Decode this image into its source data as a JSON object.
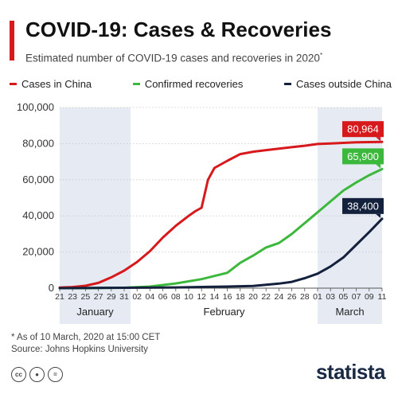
{
  "header": {
    "title": "COVID-19: Cases & Recoveries",
    "subtitle": "Estimated number of COVID-19 cases and recoveries in 2020",
    "subtitle_mark": "*"
  },
  "footer": {
    "note": "* As of 10 March, 2020 at 15:00 CET",
    "source": "Source: Johns Hopkins University",
    "license_icons": [
      "creative-commons-icon",
      "attribution-icon",
      "no-derivatives-icon"
    ],
    "brand": "statista"
  },
  "colors": {
    "accent": "#d7191c",
    "cases_china": "#d7191c",
    "recoveries": "#3cb93c",
    "cases_outside": "#14213d",
    "shade": "#e6ebf3",
    "brand": "#1b2a44"
  },
  "chart_data": {
    "type": "line",
    "x_tick_labels": [
      "21",
      "23",
      "25",
      "27",
      "29",
      "31",
      "02",
      "04",
      "06",
      "08",
      "10",
      "12",
      "14",
      "16",
      "18",
      "20",
      "22",
      "24",
      "26",
      "28",
      "01",
      "03",
      "05",
      "07",
      "09",
      "11"
    ],
    "month_labels": [
      "January",
      "February",
      "March"
    ],
    "x_start": "2020-01-21",
    "x_end": "2020-03-11",
    "ylim": [
      0,
      100000
    ],
    "y_ticks": [
      "0",
      "20,000",
      "40,000",
      "60,000",
      "80,000",
      "100,000"
    ],
    "grid": true,
    "legend_position": "top",
    "series": [
      {
        "name": "Cases in China",
        "color": "#d7191c",
        "end_label": "80,964",
        "x": [
          "2020-01-21",
          "2020-01-23",
          "2020-01-25",
          "2020-01-27",
          "2020-01-29",
          "2020-01-31",
          "2020-02-02",
          "2020-02-04",
          "2020-02-06",
          "2020-02-08",
          "2020-02-10",
          "2020-02-11",
          "2020-02-12",
          "2020-02-13",
          "2020-02-14",
          "2020-02-16",
          "2020-02-18",
          "2020-02-20",
          "2020-02-22",
          "2020-02-24",
          "2020-02-26",
          "2020-02-28",
          "2020-03-01",
          "2020-03-03",
          "2020-03-05",
          "2020-03-07",
          "2020-03-09",
          "2020-03-11"
        ],
        "y": [
          300,
          600,
          1300,
          2900,
          6000,
          9700,
          14500,
          20500,
          28000,
          34500,
          40000,
          42500,
          44500,
          60000,
          66500,
          70500,
          74200,
          75500,
          76400,
          77200,
          78000,
          78800,
          79800,
          80100,
          80400,
          80700,
          80850,
          80964
        ]
      },
      {
        "name": "Confirmed recoveries",
        "color": "#3cb93c",
        "end_label": "65,900",
        "x": [
          "2020-01-21",
          "2020-01-25",
          "2020-01-31",
          "2020-02-04",
          "2020-02-08",
          "2020-02-12",
          "2020-02-16",
          "2020-02-18",
          "2020-02-20",
          "2020-02-22",
          "2020-02-24",
          "2020-02-26",
          "2020-02-28",
          "2020-03-01",
          "2020-03-03",
          "2020-03-05",
          "2020-03-07",
          "2020-03-09",
          "2020-03-11"
        ],
        "y": [
          0,
          0,
          200,
          900,
          2600,
          5000,
          8500,
          14000,
          18000,
          22500,
          25000,
          30000,
          36000,
          42000,
          48000,
          54000,
          58500,
          62500,
          65900
        ]
      },
      {
        "name": "Cases outside China",
        "color": "#14213d",
        "end_label": "38,400",
        "x": [
          "2020-01-21",
          "2020-01-31",
          "2020-02-08",
          "2020-02-16",
          "2020-02-20",
          "2020-02-24",
          "2020-02-26",
          "2020-02-28",
          "2020-03-01",
          "2020-03-03",
          "2020-03-05",
          "2020-03-07",
          "2020-03-09",
          "2020-03-11"
        ],
        "y": [
          0,
          200,
          400,
          900,
          1200,
          2500,
          3500,
          5500,
          8000,
          12000,
          17000,
          24000,
          31000,
          38400
        ]
      }
    ]
  }
}
